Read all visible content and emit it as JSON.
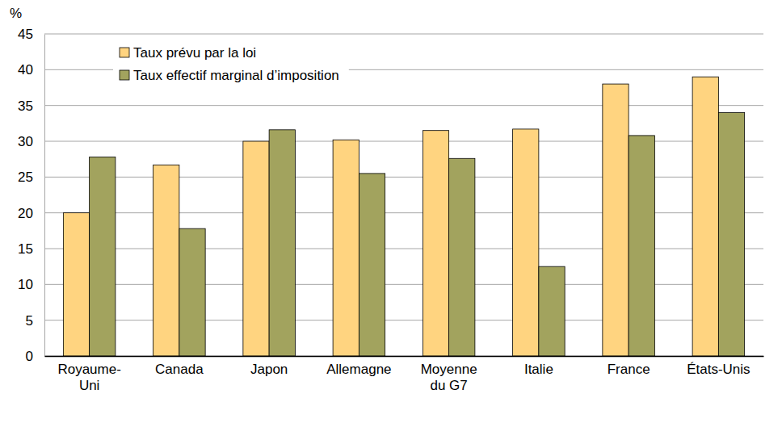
{
  "chart_data": {
    "type": "bar",
    "y_label": "%",
    "categories": [
      "Royaume-Uni",
      "Canada",
      "Japon",
      "Allemagne",
      "Moyenne du G7",
      "Italie",
      "France",
      "États-Unis"
    ],
    "series": [
      {
        "name": "Taux prévu par la loi",
        "color": "#ffd480",
        "values": [
          20,
          26.7,
          30,
          30.2,
          31.5,
          31.7,
          38,
          39
        ]
      },
      {
        "name": "Taux effectif marginal d’imposition",
        "color": "#a2a35e",
        "values": [
          27.8,
          17.8,
          31.6,
          25.5,
          27.6,
          12.5,
          30.8,
          34
        ]
      }
    ],
    "ylim": [
      0,
      45
    ],
    "yticks": [
      0,
      5,
      10,
      15,
      20,
      25,
      30,
      35,
      40,
      45
    ],
    "grid": true,
    "legend": "top-left"
  }
}
